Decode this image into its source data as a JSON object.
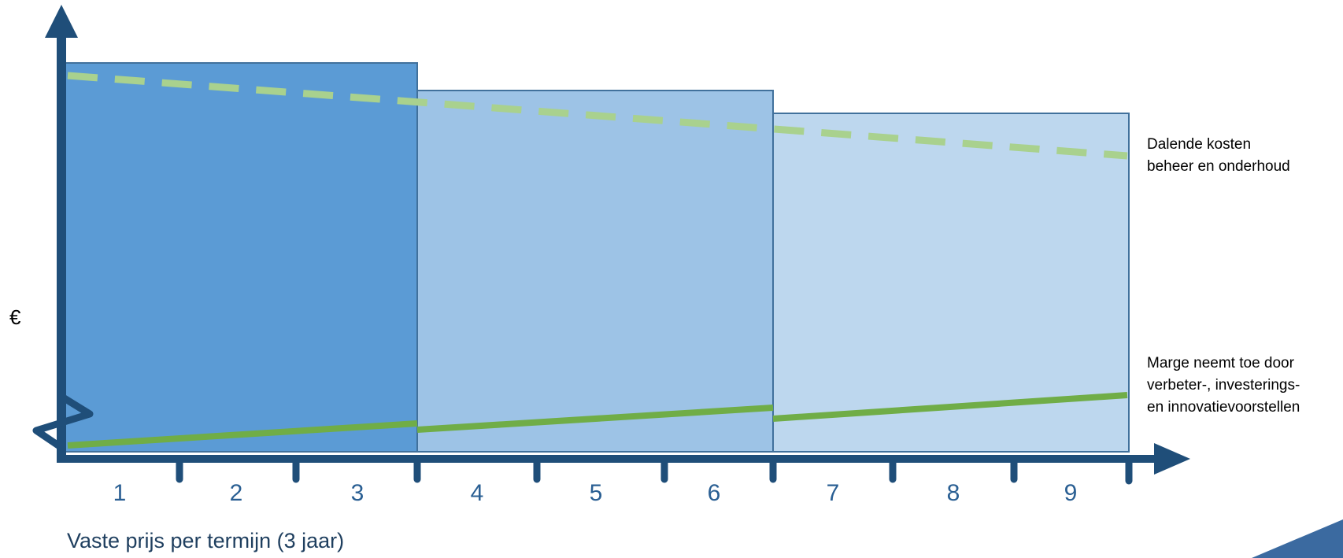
{
  "y_axis_label": "€",
  "x_axis_title": "Vaste prijs per termijn (3 jaar)",
  "tick_labels": [
    "1",
    "2",
    "3",
    "4",
    "5",
    "6",
    "7",
    "8",
    "9"
  ],
  "annotations": {
    "costs_line1": "Dalende kosten",
    "costs_line2": "beheer en onderhoud",
    "margin_line1": "Marge neemt toe door",
    "margin_line2": "verbeter-, investerings-",
    "margin_line3": "en innovatievoorstellen"
  },
  "colors": {
    "axis": "#1f4e79",
    "block_1": "#5b9bd5",
    "block_2": "#9dc3e6",
    "block_3": "#bdd7ee",
    "block_border": "#41719c",
    "cost_line": "#a9d18e",
    "margin_line": "#70ad47",
    "tick_text": "#2a5f93"
  }
}
